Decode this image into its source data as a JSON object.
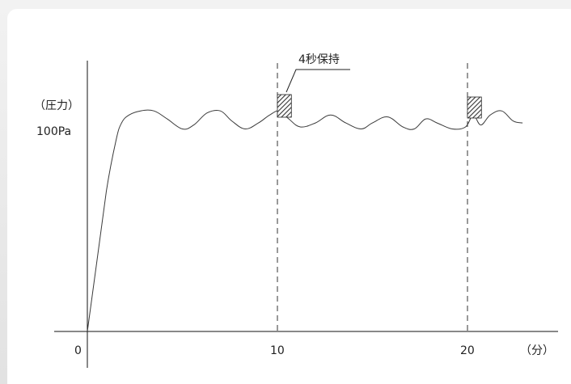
{
  "chart_data": {
    "type": "line",
    "title": "",
    "ylabel": "（圧力）",
    "y_tick_label": "100Pa",
    "xlabel": "（分）",
    "x_ticks": [
      "0",
      "10",
      "20"
    ],
    "x_range": [
      0,
      24
    ],
    "y_range": [
      0,
      125
    ],
    "series": [
      {
        "x": [
          0,
          0.5,
          1.0,
          1.5,
          1.8,
          2.2,
          2.8,
          3.5,
          4.2,
          5.0,
          5.6,
          6.3,
          7.0,
          7.6,
          8.3,
          9.0,
          9.6,
          10.1,
          10.6,
          11.2,
          12.0,
          12.8,
          13.6,
          14.4,
          15.0,
          15.8,
          16.6,
          17.2,
          17.8,
          18.4,
          19.2,
          19.9,
          20.3,
          20.7,
          21.2,
          21.8,
          22.4,
          22.9
        ],
        "y": [
          0,
          35,
          70,
          95,
          104,
          108,
          110,
          110,
          106,
          101,
          103,
          109,
          110,
          105,
          101,
          104,
          108,
          110,
          106,
          102,
          104,
          108,
          104,
          101,
          104,
          107,
          102,
          101,
          106,
          104,
          101,
          102,
          108,
          103,
          108,
          110,
          105,
          104
        ]
      }
    ],
    "reference_lines_x": [
      10,
      20
    ],
    "hold_regions": [
      {
        "x0": 10,
        "x1": 10.65
      },
      {
        "x0": 20,
        "x1": 20.65
      }
    ],
    "annotation": "4秒保持",
    "colors": {
      "line": "#3a3a3a",
      "axis": "#111111",
      "hatch": "#333333",
      "dashed": "#333333"
    }
  }
}
